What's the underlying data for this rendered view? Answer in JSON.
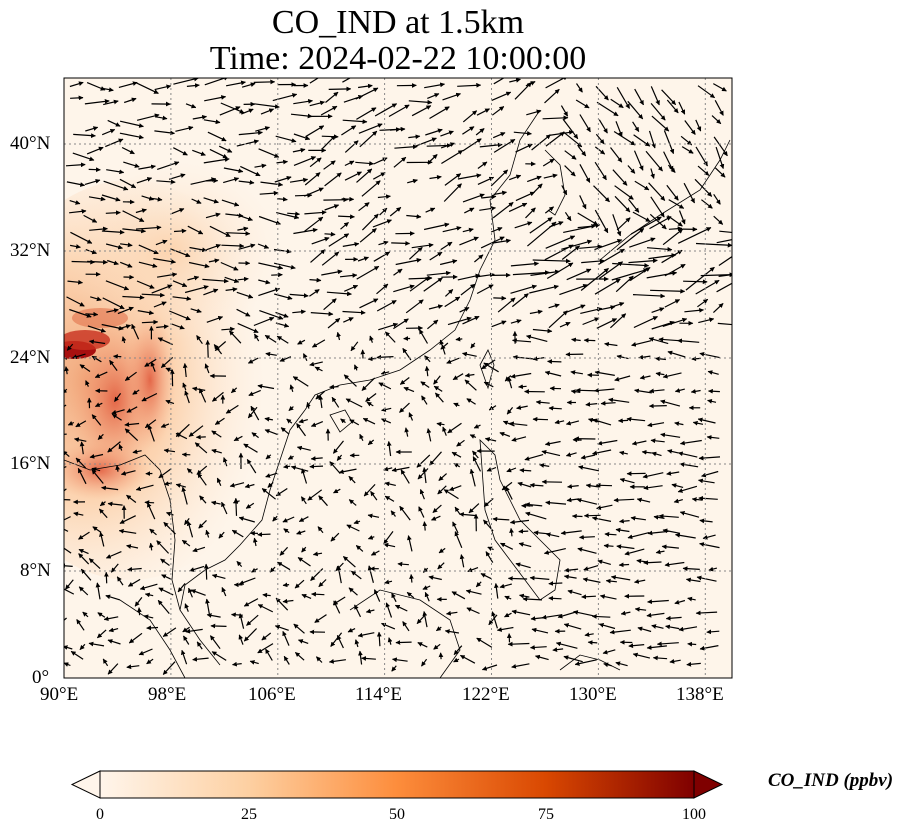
{
  "title": {
    "line1": "CO_IND at 1.5km",
    "line2": "Time: 2024-02-22 10:00:00"
  },
  "map": {
    "lon_range": [
      90,
      140
    ],
    "lat_range": [
      0,
      44
    ],
    "lon_ticks": [
      "90°E",
      "98°E",
      "106°E",
      "114°E",
      "122°E",
      "130°E",
      "138°E"
    ],
    "lat_ticks": [
      "0°",
      "8°N",
      "16°N",
      "24°N",
      "32°N",
      "40°N"
    ],
    "gridlines": true,
    "background_color": "#fff5eb",
    "plume_color": "#d2401a",
    "plume_core_color": "#8b0000",
    "overlay": "wind vectors (quiver)"
  },
  "colorbar": {
    "title": "CO_IND (ppbv)",
    "ticks": [
      "0",
      "25",
      "50",
      "75",
      "100"
    ],
    "min": 0,
    "max": 100,
    "extend": "both",
    "colors": [
      "#fff5eb",
      "#fdd0a2",
      "#fd8d3c",
      "#d94801",
      "#7f0000"
    ]
  }
}
